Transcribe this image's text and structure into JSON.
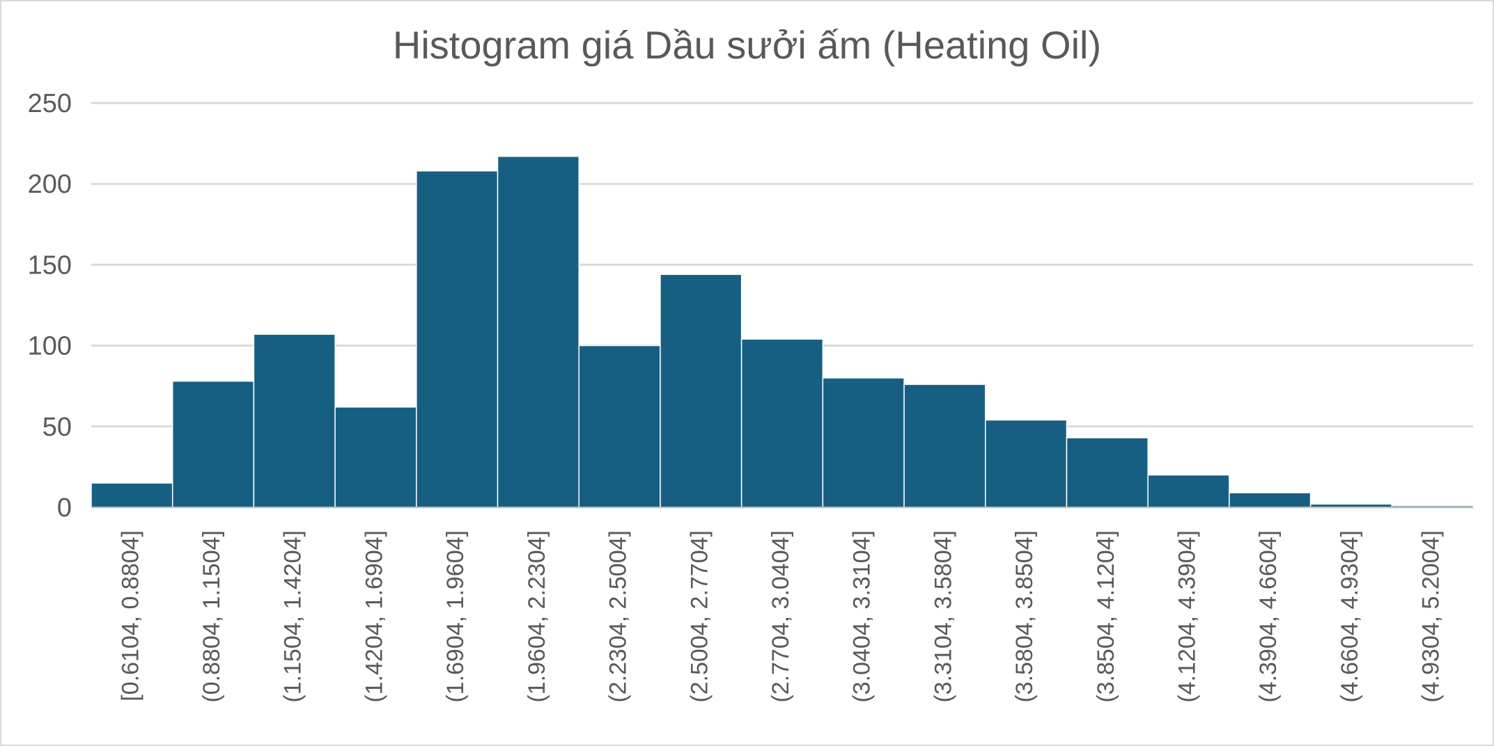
{
  "chart_data": {
    "type": "bar",
    "title": "Histogram giá Dầu sưởi ấm (Heating Oil)",
    "xlabel": "",
    "ylabel": "",
    "ylim": [
      0,
      250
    ],
    "yticks": [
      "0",
      "50",
      "100",
      "150",
      "200",
      "250"
    ],
    "grid": true,
    "categories": [
      "[0.6104, 0.8804]",
      "(0.8804, 1.1504]",
      "(1.1504, 1.4204]",
      "(1.4204, 1.6904]",
      "(1.6904, 1.9604]",
      "(1.9604, 2.2304]",
      "(2.2304, 2.5004]",
      "(2.5004, 2.7704]",
      "(2.7704, 3.0404]",
      "(3.0404, 3.3104]",
      "(3.3104, 3.5804]",
      "(3.5804, 3.8504]",
      "(3.8504, 4.1204]",
      "(4.1204, 4.3904]",
      "(4.3904, 4.6604]",
      "(4.6604, 4.9304]",
      "(4.9304, 5.2004]"
    ],
    "values": [
      15,
      78,
      107,
      62,
      208,
      217,
      100,
      144,
      104,
      80,
      76,
      54,
      43,
      20,
      9,
      2,
      1
    ],
    "bar_color": "#175f82"
  }
}
